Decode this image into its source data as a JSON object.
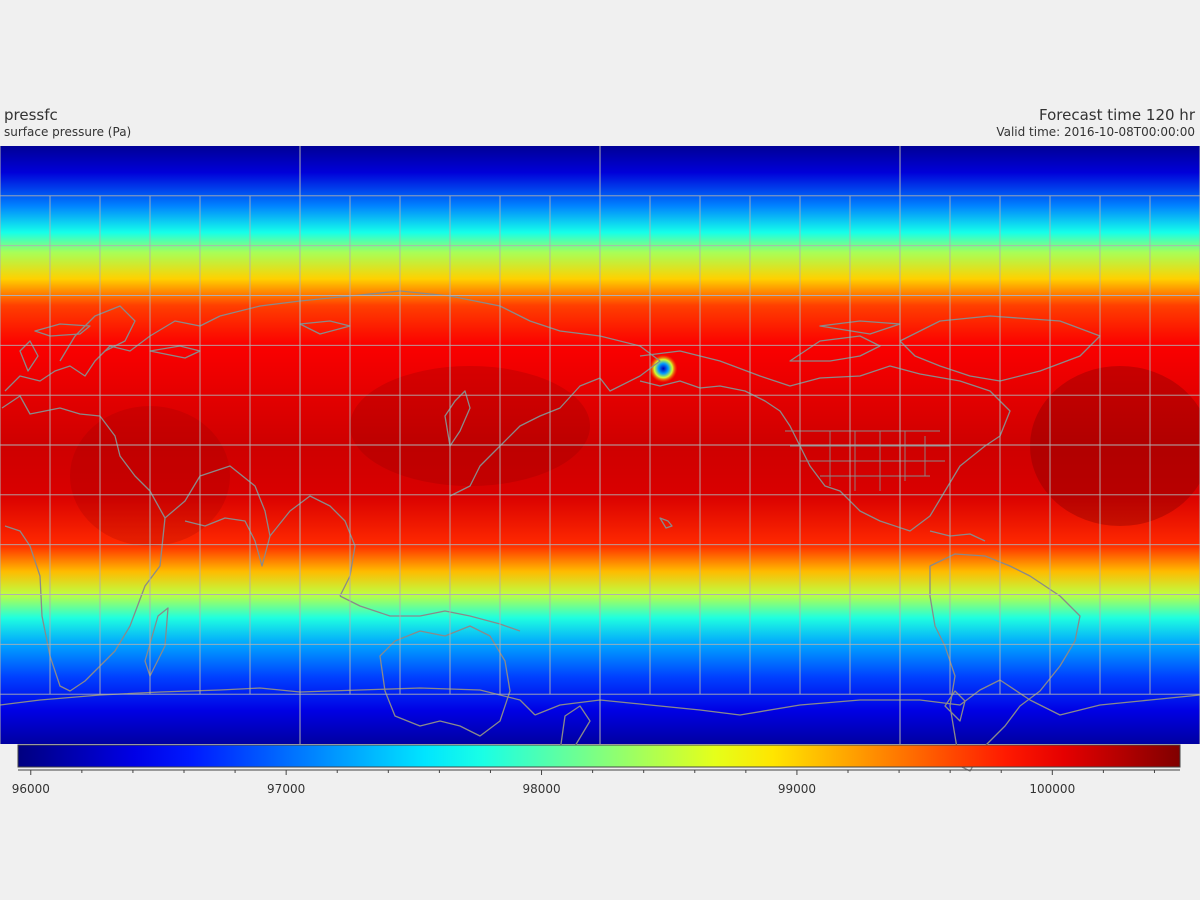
{
  "header": {
    "variable": "pressfc",
    "description": "surface pressure (Pa)",
    "forecast_time": "Forecast time 120 hr",
    "valid_time": "Valid time: 2016-10-08T00:00:00"
  },
  "colors": {
    "background": "#f0f0f0",
    "grid": "#b0b0b0",
    "coastline": "#8a8a8a",
    "colormap": "jet"
  },
  "map": {
    "projection": "equirectangular",
    "lon_range": [
      0,
      360
    ],
    "lat_range": [
      -90,
      90
    ],
    "major_grid_lon": [
      0,
      90,
      180,
      270,
      360
    ],
    "minor_grid_lon_step": 15,
    "grid_lat": [
      -75,
      -60,
      -45,
      -30,
      -15,
      0,
      15,
      30,
      45,
      60,
      75
    ],
    "field_latitude_profile": [
      {
        "lat": 90,
        "value": 96050
      },
      {
        "lat": 82,
        "value": 96350
      },
      {
        "lat": 72,
        "value": 97100
      },
      {
        "lat": 64,
        "value": 97750
      },
      {
        "lat": 58,
        "value": 98400
      },
      {
        "lat": 50,
        "value": 99000
      },
      {
        "lat": 42,
        "value": 99650
      },
      {
        "lat": 30,
        "value": 99950
      },
      {
        "lat": 15,
        "value": 100050
      },
      {
        "lat": 0,
        "value": 100150
      },
      {
        "lat": -15,
        "value": 100100
      },
      {
        "lat": -30,
        "value": 99750
      },
      {
        "lat": -38,
        "value": 99100
      },
      {
        "lat": -45,
        "value": 98500
      },
      {
        "lat": -52,
        "value": 97800
      },
      {
        "lat": -60,
        "value": 97250
      },
      {
        "lat": -70,
        "value": 96800
      },
      {
        "lat": -80,
        "value": 96400
      },
      {
        "lat": -90,
        "value": 96100
      }
    ],
    "low_pressure_feature": {
      "lon": 199,
      "lat": 23,
      "value": 97200
    }
  },
  "colorbar": {
    "min": 95950,
    "max": 100500,
    "major_ticks": [
      96000,
      97000,
      98000,
      99000,
      100000
    ],
    "major_tick_labels": [
      "96000",
      "97000",
      "98000",
      "99000",
      "100000"
    ],
    "minor_tick_step": 200
  }
}
